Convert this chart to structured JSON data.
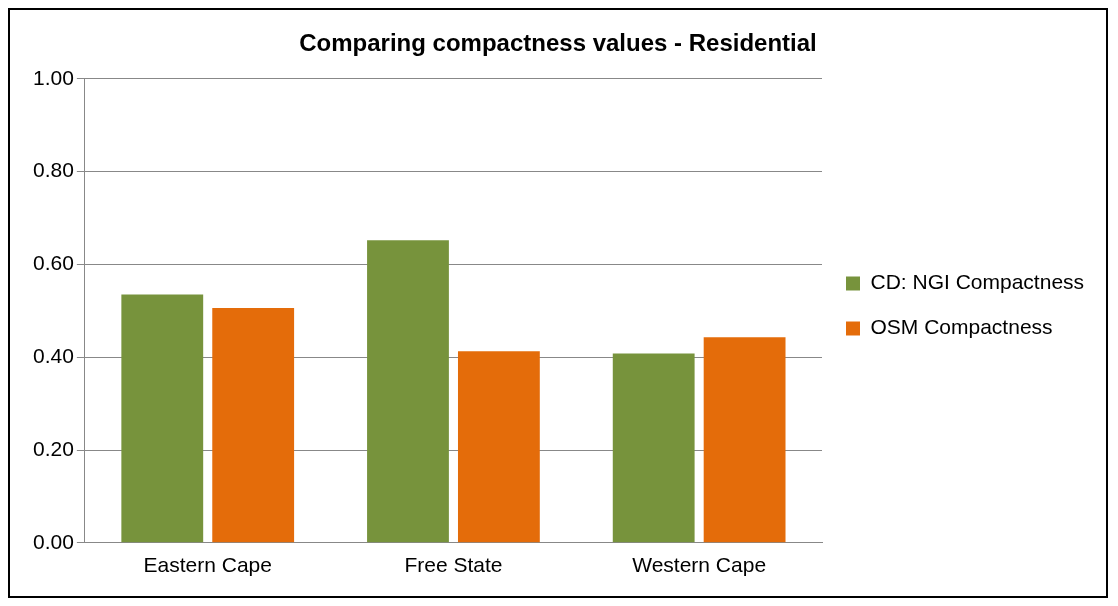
{
  "chart_data": {
    "type": "bar",
    "title": "Comparing compactness values - Residential",
    "categories": [
      "Eastern Cape",
      "Free State",
      "Western Cape"
    ],
    "series": [
      {
        "name": "CD: NGI Compactness",
        "color": "#77933c",
        "values": [
          0.535,
          0.652,
          0.408
        ]
      },
      {
        "name": "OSM Compactness",
        "color": "#e46c0a",
        "values": [
          0.506,
          0.413,
          0.443
        ]
      }
    ],
    "ylim": [
      0,
      1
    ],
    "yticks": [
      {
        "value": 0,
        "label": "0.00"
      },
      {
        "value": 0.2,
        "label": "0.20"
      },
      {
        "value": 0.4,
        "label": "0.40"
      },
      {
        "value": 0.6,
        "label": "0.60"
      },
      {
        "value": 0.8,
        "label": "0.80"
      },
      {
        "value": 1,
        "label": "1.00"
      }
    ],
    "grid": "y",
    "legend": "right"
  }
}
